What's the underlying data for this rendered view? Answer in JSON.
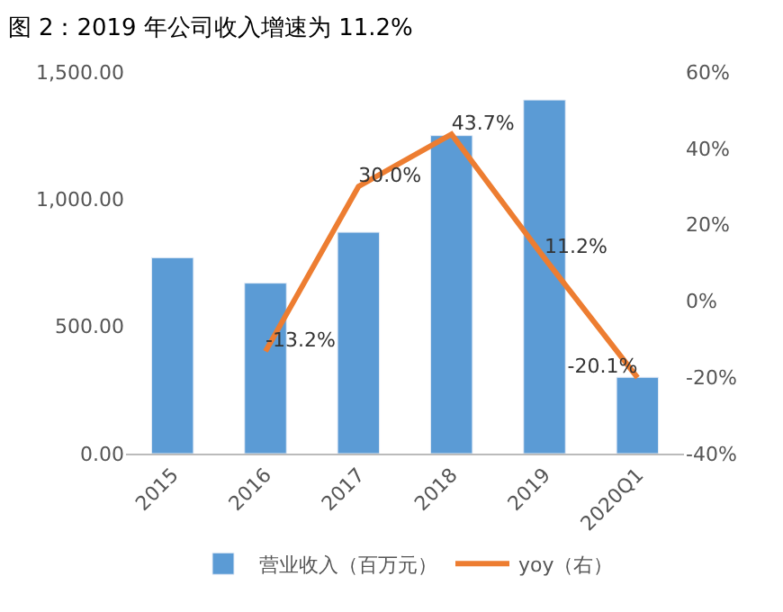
{
  "chart_data": {
    "type": "bar",
    "title": "图 2：2019 年公司收入增速为 11.2%",
    "categories": [
      "2015",
      "2016",
      "2017",
      "2018",
      "2019",
      "2020Q1"
    ],
    "series": [
      {
        "name": "营业收入（百万元）",
        "color": "#5b9bd5",
        "values": [
          770,
          670,
          870,
          1250,
          1390,
          300
        ]
      },
      {
        "name": "yoy（右）",
        "type": "line",
        "axis": "y2",
        "color": "#ed7d31",
        "values": [
          null,
          -13.2,
          30.0,
          43.7,
          11.2,
          -20.1
        ],
        "value_labels": [
          null,
          "-13.2%",
          "30.0%",
          "43.7%",
          "11.2%",
          "-20.1%"
        ]
      }
    ],
    "ylim": [
      0,
      1500
    ],
    "yticks": [
      {
        "value": 0,
        "label": "0.00"
      },
      {
        "value": 500,
        "label": "500.00"
      },
      {
        "value": 1000,
        "label": "1,000.00"
      },
      {
        "value": 1500,
        "label": "1,500.00"
      }
    ],
    "y2lim": [
      -40,
      60
    ],
    "y2ticks": [
      {
        "value": -40,
        "label": "-40%"
      },
      {
        "value": -20,
        "label": "-20%"
      },
      {
        "value": 0,
        "label": "0%"
      },
      {
        "value": 20,
        "label": "20%"
      },
      {
        "value": 40,
        "label": "40%"
      },
      {
        "value": 60,
        "label": "60%"
      }
    ],
    "legend": "bottom",
    "marker": "none",
    "line_style": "solid"
  }
}
